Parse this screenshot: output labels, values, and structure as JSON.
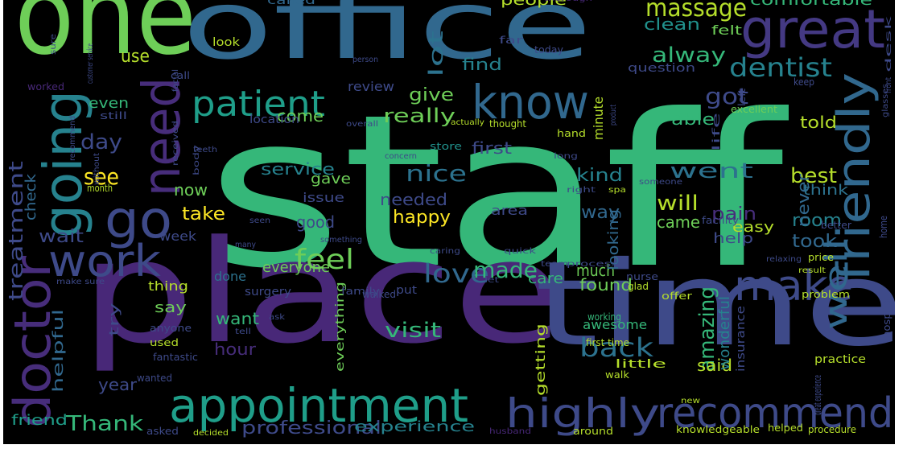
{
  "words": [
    {
      "t": "staff",
      "c": "#35b779"
    },
    {
      "t": "place",
      "c": "#482878"
    },
    {
      "t": "time",
      "c": "#3e4a89"
    },
    {
      "t": "one",
      "c": "#6ece58"
    },
    {
      "t": "office",
      "c": "#31688e"
    },
    {
      "t": "great",
      "c": "#443983"
    },
    {
      "t": "appointment",
      "c": "#1f9e89"
    },
    {
      "t": "recommend",
      "c": "#3e4a89"
    },
    {
      "t": "highly",
      "c": "#3e4a89"
    },
    {
      "t": "know",
      "c": "#31688e"
    },
    {
      "t": "work",
      "c": "#3e4a89"
    },
    {
      "t": "going",
      "c": "#26828e"
    },
    {
      "t": "need",
      "c": "#472d7b"
    },
    {
      "t": "doctor",
      "c": "#472d7b"
    },
    {
      "t": "friendly",
      "c": "#31688e"
    },
    {
      "t": "make",
      "c": "#3e4a89"
    },
    {
      "t": "patient",
      "c": "#1f9e89"
    },
    {
      "t": "go",
      "c": "#3e4a89"
    },
    {
      "t": "massage",
      "c": "#b5de2b"
    },
    {
      "t": "dentist",
      "c": "#26828e"
    },
    {
      "t": "alway",
      "c": "#35b779"
    },
    {
      "t": "clean",
      "c": "#21918c"
    },
    {
      "t": "comfortable",
      "c": "#35b779"
    },
    {
      "t": "people",
      "c": "#b5de2b"
    },
    {
      "t": "called",
      "c": "#31688e"
    },
    {
      "t": "thorough",
      "c": "#482878"
    },
    {
      "t": "felt",
      "c": "#6ece58"
    },
    {
      "t": "lot",
      "c": "#2c728e"
    },
    {
      "t": "find",
      "c": "#26828e"
    },
    {
      "t": "question",
      "c": "#3e4a89"
    },
    {
      "t": "got",
      "c": "#3e4a89"
    },
    {
      "t": "will",
      "c": "#b5de2b"
    },
    {
      "t": "went",
      "c": "#2c728e"
    },
    {
      "t": "best",
      "c": "#b5de2b"
    },
    {
      "t": "well",
      "c": "#31688e"
    },
    {
      "t": "nice",
      "c": "#2c728e"
    },
    {
      "t": "love",
      "c": "#31688e"
    },
    {
      "t": "made",
      "c": "#35b779"
    },
    {
      "t": "feel",
      "c": "#6ece58"
    },
    {
      "t": "amazing",
      "c": "#35b779"
    },
    {
      "t": "back",
      "c": "#2c728e"
    },
    {
      "t": "visit",
      "c": "#35b779"
    },
    {
      "t": "Thank",
      "c": "#35b779"
    },
    {
      "t": "professional",
      "c": "#3e4a89"
    },
    {
      "t": "experience",
      "c": "#26828e"
    },
    {
      "t": "even",
      "c": "#35b779"
    },
    {
      "t": "day",
      "c": "#3e4a89"
    },
    {
      "t": "see",
      "c": "#fde725"
    },
    {
      "t": "really",
      "c": "#6ece58"
    },
    {
      "t": "give",
      "c": "#6ece58"
    },
    {
      "t": "come",
      "c": "#6ece58"
    },
    {
      "t": "service",
      "c": "#26828e"
    },
    {
      "t": "now",
      "c": "#6ece58"
    },
    {
      "t": "gave",
      "c": "#6ece58"
    },
    {
      "t": "issue",
      "c": "#3e4a89"
    },
    {
      "t": "take",
      "c": "#fde725"
    },
    {
      "t": "good",
      "c": "#3e4a89"
    },
    {
      "t": "happy",
      "c": "#fde725"
    },
    {
      "t": "needed",
      "c": "#3e4a89"
    },
    {
      "t": "kind",
      "c": "#26828e"
    },
    {
      "t": "way",
      "c": "#31688e"
    },
    {
      "t": "came",
      "c": "#6ece58"
    },
    {
      "t": "easy",
      "c": "#b5de2b"
    },
    {
      "t": "room",
      "c": "#26828e"
    },
    {
      "t": "pain",
      "c": "#472d7b"
    },
    {
      "t": "area",
      "c": "#3e4a89"
    },
    {
      "t": "took",
      "c": "#31688e"
    },
    {
      "t": "help",
      "c": "#3e4a89"
    },
    {
      "t": "much",
      "c": "#6ece58"
    },
    {
      "t": "found",
      "c": "#6ece58"
    },
    {
      "t": "care",
      "c": "#35b779"
    },
    {
      "t": "looking",
      "c": "#31688e"
    },
    {
      "t": "wait",
      "c": "#3e4a89"
    },
    {
      "t": "week",
      "c": "#3e4a89"
    },
    {
      "t": "everyone",
      "c": "#6ece58"
    },
    {
      "t": "thing",
      "c": "#b5de2b"
    },
    {
      "t": "done",
      "c": "#2c728e"
    },
    {
      "t": "say",
      "c": "#6ece58"
    },
    {
      "t": "want",
      "c": "#35b779"
    },
    {
      "t": "hour",
      "c": "#472d7b"
    },
    {
      "t": "helpful",
      "c": "#31688e"
    },
    {
      "t": "year",
      "c": "#3e4a89"
    },
    {
      "t": "said",
      "c": "#b5de2b"
    },
    {
      "t": "awesome",
      "c": "#35b779"
    },
    {
      "t": "wonderful",
      "c": "#26828e"
    },
    {
      "t": "getting",
      "c": "#b5de2b"
    },
    {
      "t": "everything",
      "c": "#6ece58"
    },
    {
      "t": "treatment",
      "c": "#3e4a89"
    },
    {
      "t": "check",
      "c": "#31688e"
    },
    {
      "t": "use",
      "c": "#b5de2b"
    },
    {
      "t": "look",
      "c": "#b5de2b"
    },
    {
      "t": "far",
      "c": "#3e4a89"
    },
    {
      "t": "today",
      "c": "#3e4a89"
    },
    {
      "t": "worked",
      "c": "#482878"
    },
    {
      "t": "call",
      "c": "#3e4a89"
    },
    {
      "t": "review",
      "c": "#3e4a89"
    },
    {
      "t": "location",
      "c": "#3e4a89"
    },
    {
      "t": "minute",
      "c": "#b5de2b"
    },
    {
      "t": "able",
      "c": "#35b779"
    },
    {
      "t": "told",
      "c": "#b5de2b"
    },
    {
      "t": "excellent",
      "c": "#6ece58"
    },
    {
      "t": "first",
      "c": "#3e4a89"
    },
    {
      "t": "never",
      "c": "#31688e"
    },
    {
      "t": "think",
      "c": "#2c728e"
    },
    {
      "t": "store",
      "c": "#21918c"
    },
    {
      "t": "thought",
      "c": "#b5de2b"
    },
    {
      "t": "actually",
      "c": "#b5de2b"
    },
    {
      "t": "hand",
      "c": "#b5de2b"
    },
    {
      "t": "left",
      "c": "#3e4a89"
    },
    {
      "t": "keep",
      "c": "#3e4a89"
    },
    {
      "t": "still",
      "c": "#3e4a89"
    },
    {
      "t": "received",
      "c": "#3e4a89"
    },
    {
      "t": "month",
      "c": "#b5de2b"
    },
    {
      "t": "surgery",
      "c": "#3e4a89"
    },
    {
      "t": "family",
      "c": "#3e4a89"
    },
    {
      "t": "walked",
      "c": "#3e4a89"
    },
    {
      "t": "put",
      "c": "#3e4a89"
    },
    {
      "t": "anyone",
      "c": "#3e4a89"
    },
    {
      "t": "try",
      "c": "#3e4a89"
    },
    {
      "t": "used",
      "c": "#b5de2b"
    },
    {
      "t": "fantastic",
      "c": "#3e4a89"
    },
    {
      "t": "wanted",
      "c": "#3e4a89"
    },
    {
      "t": "friend",
      "c": "#1f9e89"
    },
    {
      "t": "asked",
      "c": "#3e4a89"
    },
    {
      "t": "decided",
      "c": "#b5de2b"
    },
    {
      "t": "husband",
      "c": "#482878"
    },
    {
      "t": "around",
      "c": "#b5de2b"
    },
    {
      "t": "knowledgeable",
      "c": "#b5de2b"
    },
    {
      "t": "helped",
      "c": "#b5de2b"
    },
    {
      "t": "procedure",
      "c": "#b5de2b"
    },
    {
      "t": "practice",
      "c": "#b5de2b"
    },
    {
      "t": "insurance",
      "c": "#3e4a89"
    },
    {
      "t": "first time",
      "c": "#b5de2b"
    },
    {
      "t": "little",
      "c": "#b5de2b"
    },
    {
      "t": "walk",
      "c": "#b5de2b"
    },
    {
      "t": "new",
      "c": "#b5de2b"
    },
    {
      "t": "working",
      "c": "#35b779"
    },
    {
      "t": "offer",
      "c": "#b5de2b"
    },
    {
      "t": "glad",
      "c": "#b5de2b"
    },
    {
      "t": "problem",
      "c": "#b5de2b"
    },
    {
      "t": "result",
      "c": "#b5de2b"
    },
    {
      "t": "price",
      "c": "#b5de2b"
    },
    {
      "t": "better",
      "c": "#3e4a89"
    },
    {
      "t": "home",
      "c": "#3e4a89"
    },
    {
      "t": "hospital",
      "c": "#3e4a89"
    },
    {
      "t": "great experience",
      "c": "#3e4a89"
    },
    {
      "t": "nurse",
      "c": "#3e4a89"
    },
    {
      "t": "quick",
      "c": "#3e4a89"
    },
    {
      "t": "spa",
      "c": "#b5de2b"
    },
    {
      "t": "right",
      "c": "#3e4a89"
    },
    {
      "t": "someone",
      "c": "#3e4a89"
    },
    {
      "t": "facility",
      "c": "#3e4a89"
    },
    {
      "t": "relaxing",
      "c": "#3e4a89"
    },
    {
      "t": "process",
      "c": "#3e4a89"
    },
    {
      "t": "team",
      "c": "#3e4a89"
    },
    {
      "t": "caring",
      "c": "#3e4a89"
    },
    {
      "t": "something",
      "c": "#3e4a89"
    },
    {
      "t": "seen",
      "c": "#3e4a89"
    },
    {
      "t": "let",
      "c": "#3e4a89"
    },
    {
      "t": "life",
      "c": "#3e4a89"
    },
    {
      "t": "long",
      "c": "#3e4a89"
    },
    {
      "t": "concern",
      "c": "#3e4a89"
    },
    {
      "t": "teeth",
      "c": "#3e4a89"
    },
    {
      "t": "body",
      "c": "#3e4a89"
    },
    {
      "t": "without",
      "c": "#3e4a89"
    },
    {
      "t": "recommend",
      "c": "#3e4a89"
    },
    {
      "t": "overall",
      "c": "#3e4a89"
    },
    {
      "t": "product",
      "c": "#3e4a89"
    },
    {
      "t": "person",
      "c": "#3e4a89"
    },
    {
      "t": "customer service",
      "c": "#3e4a89"
    },
    {
      "t": "sure",
      "c": "#3e4a89"
    },
    {
      "t": "facial",
      "c": "#3e4a89"
    },
    {
      "t": "desk",
      "c": "#3e4a89"
    },
    {
      "t": "glasses",
      "c": "#3e4a89"
    },
    {
      "t": "front",
      "c": "#3e4a89"
    },
    {
      "t": "make sure",
      "c": "#3e4a89"
    },
    {
      "t": "many",
      "c": "#3e4a89"
    },
    {
      "t": "ask",
      "c": "#3e4a89"
    },
    {
      "t": "tell",
      "c": "#3e4a89"
    }
  ]
}
